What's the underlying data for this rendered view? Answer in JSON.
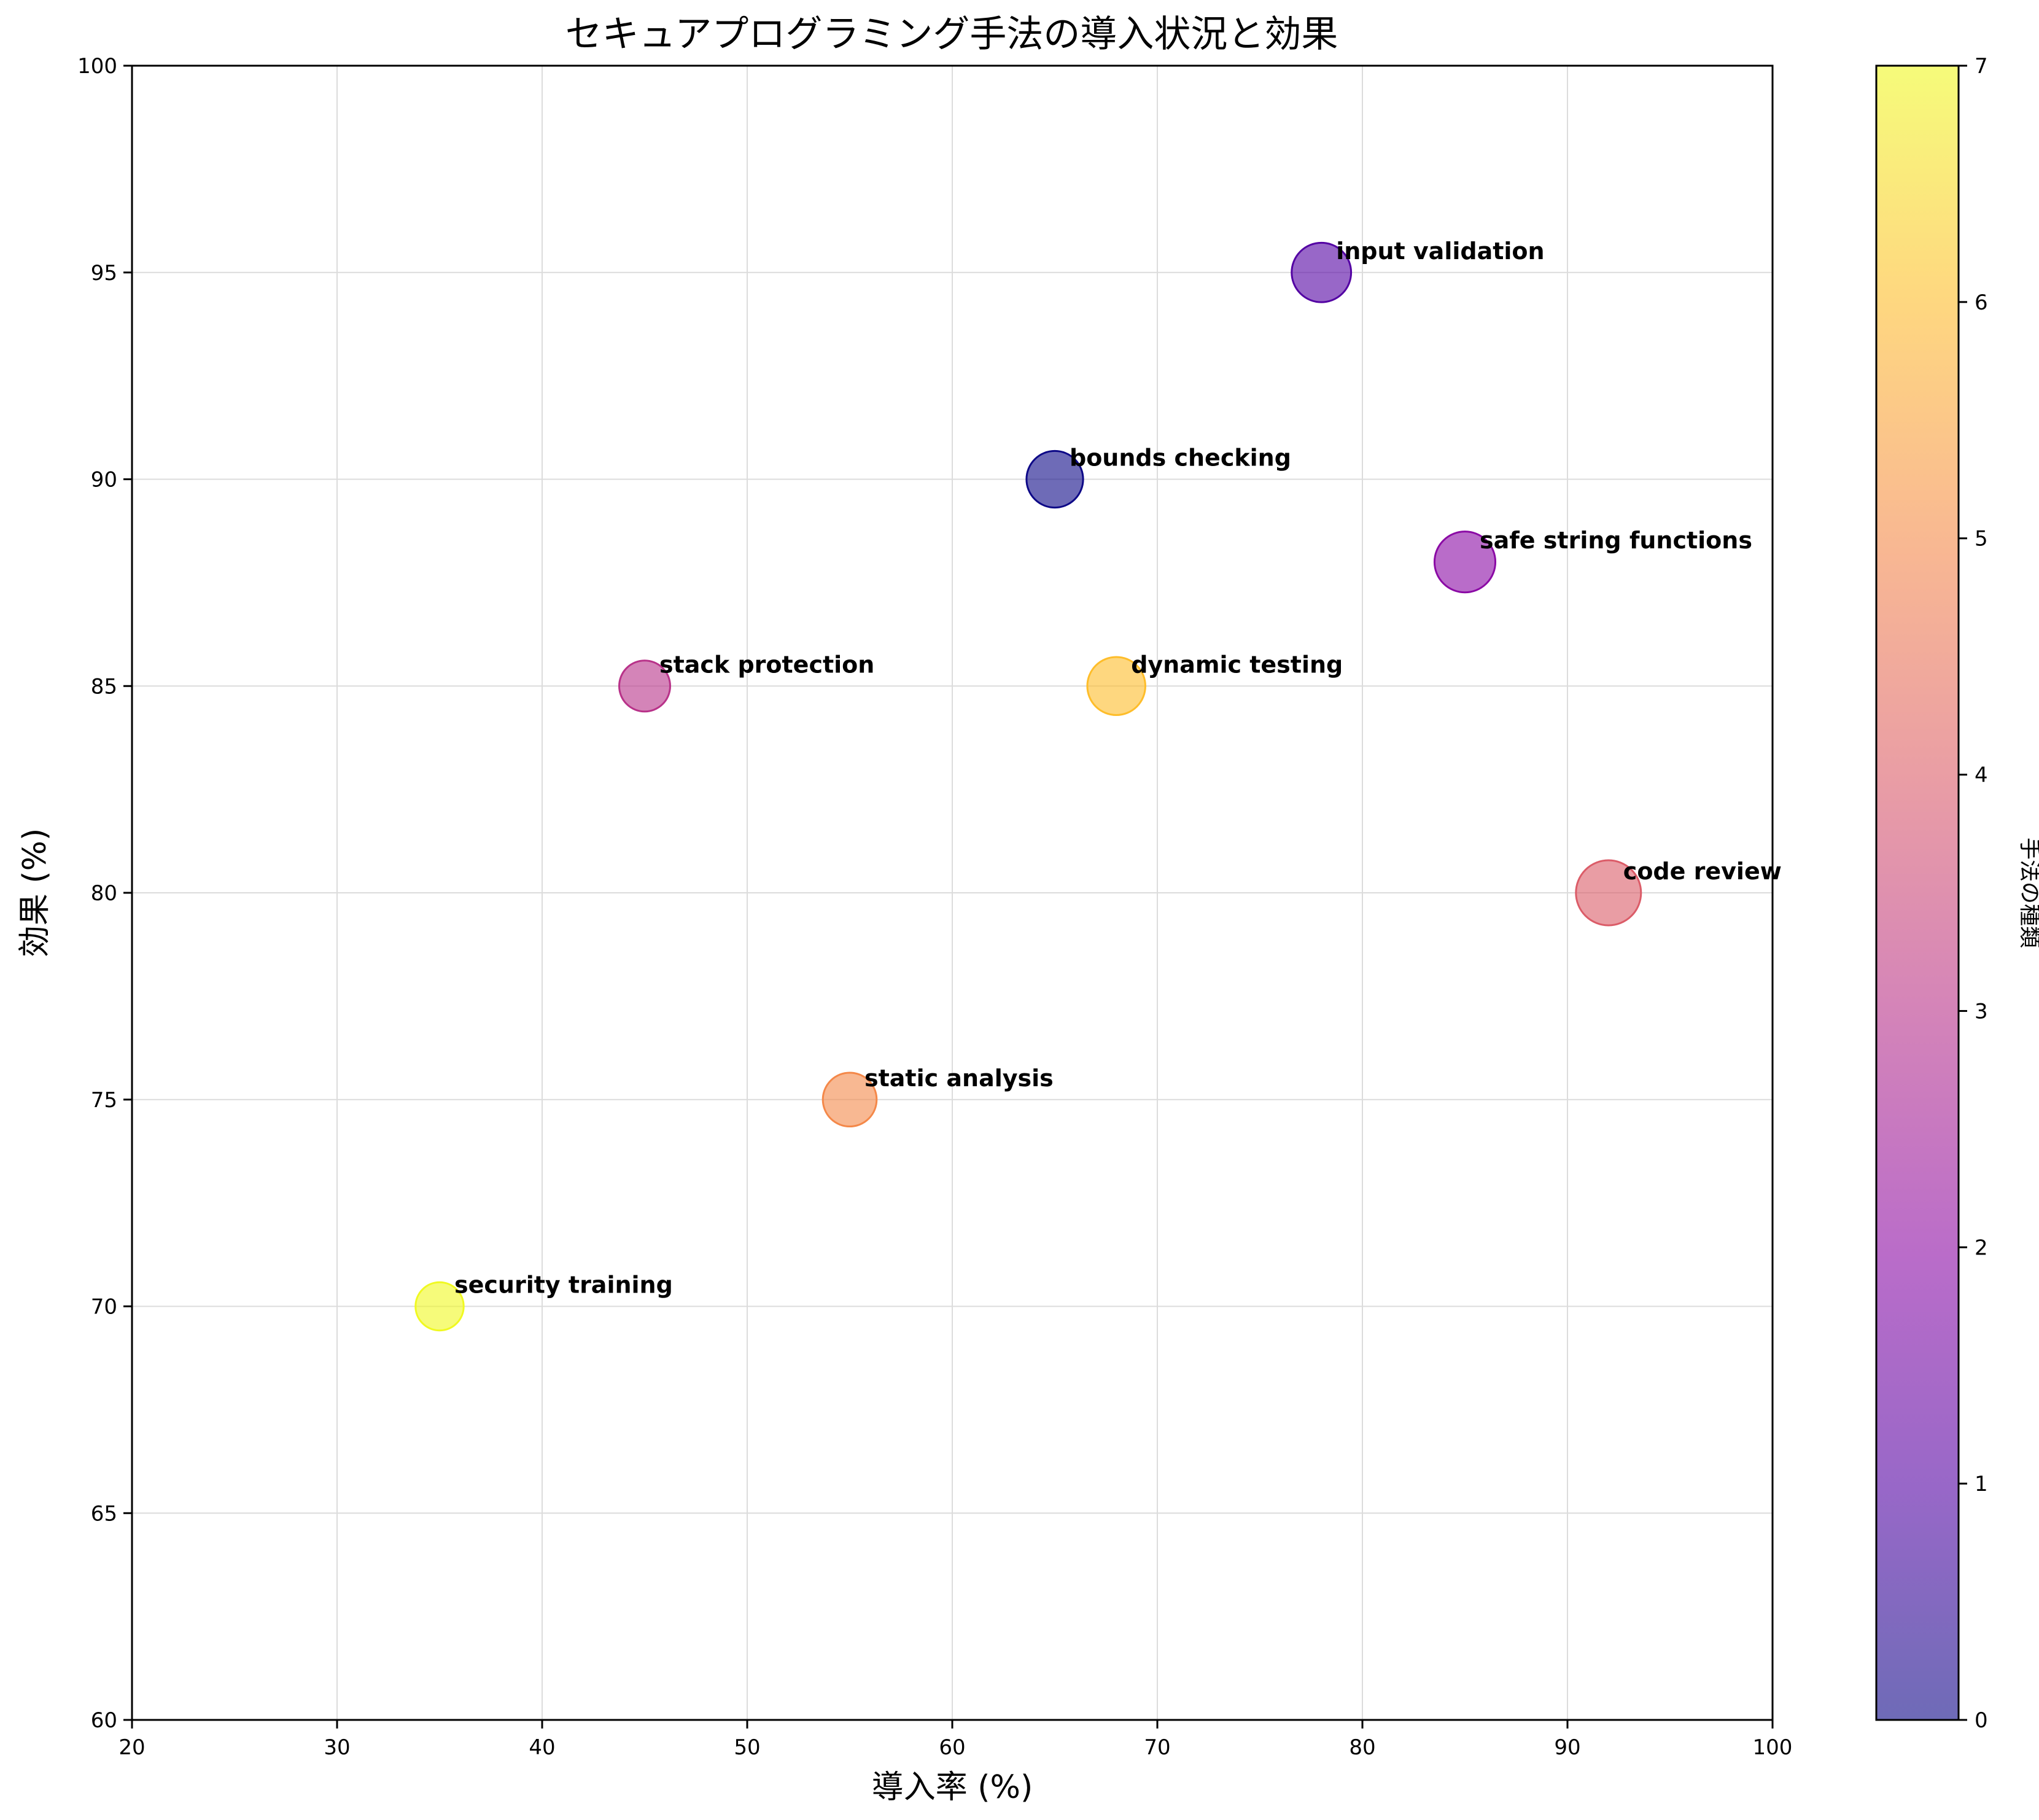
{
  "chart_data": {
    "type": "scatter",
    "title": "セキュアプログラミング手法の導入状況と効果",
    "xlabel": "導入率 (%)",
    "ylabel": "効果 (%)",
    "xlim": [
      20,
      100
    ],
    "ylim": [
      60,
      100
    ],
    "xticks": [
      20,
      30,
      40,
      50,
      60,
      70,
      80,
      90,
      100
    ],
    "yticks": [
      60,
      65,
      70,
      75,
      80,
      85,
      90,
      95,
      100
    ],
    "grid": true,
    "colorbar": {
      "label": "手法の種類",
      "range": [
        0,
        7
      ],
      "ticks": [
        0,
        1,
        2,
        3,
        4,
        5,
        6,
        7
      ],
      "colormap": "plasma"
    },
    "points": [
      {
        "label": "bounds checking",
        "x": 65,
        "y": 90,
        "color_value": 0,
        "size": 7
      },
      {
        "label": "input validation",
        "x": 78,
        "y": 95,
        "color_value": 1,
        "size": 8
      },
      {
        "label": "safe string functions",
        "x": 85,
        "y": 88,
        "color_value": 2,
        "size": 8.5
      },
      {
        "label": "stack protection",
        "x": 45,
        "y": 85,
        "color_value": 3,
        "size": 5
      },
      {
        "label": "code review",
        "x": 92,
        "y": 80,
        "color_value": 4,
        "size": 10
      },
      {
        "label": "static analysis",
        "x": 55,
        "y": 75,
        "color_value": 5,
        "size": 6
      },
      {
        "label": "dynamic testing",
        "x": 68,
        "y": 85,
        "color_value": 6,
        "size": 7.5
      },
      {
        "label": "security training",
        "x": 35,
        "y": 70,
        "color_value": 7,
        "size": 4
      }
    ]
  }
}
